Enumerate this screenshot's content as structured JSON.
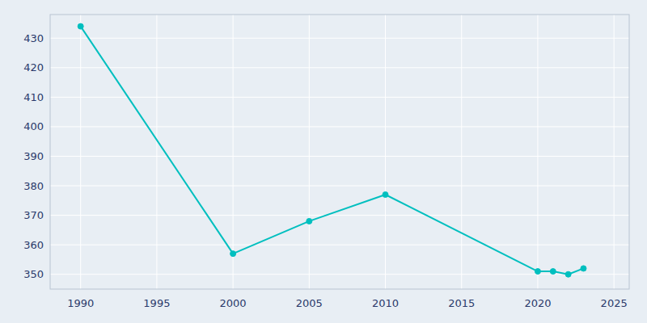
{
  "chart_data": {
    "type": "line",
    "x": [
      1990,
      2000,
      2005,
      2010,
      2020,
      2021,
      2022,
      2023
    ],
    "values": [
      434,
      357,
      368,
      377,
      351,
      351,
      350,
      352
    ],
    "color": "#00BFBF",
    "marker": "circle",
    "xlim": [
      1988,
      2026
    ],
    "ylim": [
      345,
      438
    ],
    "xticks": [
      1990,
      1995,
      2000,
      2005,
      2010,
      2015,
      2020,
      2025
    ],
    "yticks": [
      350,
      360,
      370,
      380,
      390,
      400,
      410,
      420,
      430
    ],
    "grid": true
  }
}
